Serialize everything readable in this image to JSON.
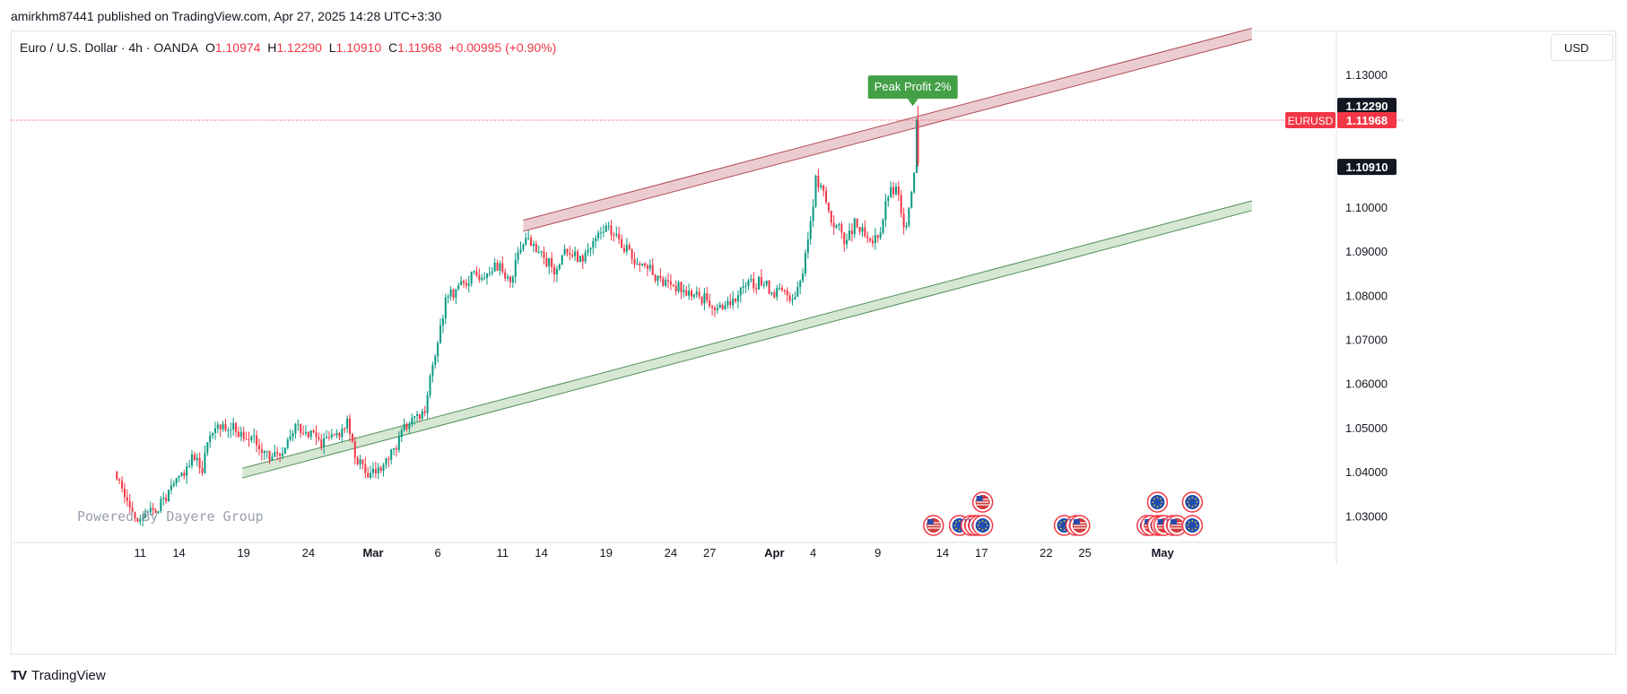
{
  "header": {
    "publisher_text": "amirkhm87441 published on TradingView.com, Apr 27, 2025 14:28 UTC+3:30"
  },
  "legend": {
    "symbol_text": "Euro / U.S. Dollar · 4h · OANDA",
    "o_label": "O",
    "o_value": "1.10974",
    "h_label": "H",
    "h_value": "1.12290",
    "l_label": "L",
    "l_value": "1.10910",
    "c_label": "C",
    "c_value": "1.11968",
    "change": "+0.00995 (+0.90%)"
  },
  "currency_button": "USD",
  "watermark": "Powered By Dayere Group",
  "footer": {
    "brand": "TradingView",
    "logo": "TV"
  },
  "colors": {
    "up": "#089981",
    "down": "#f23645",
    "text": "#131722",
    "channel_top_fill": "#e8c4c9",
    "channel_top_line": "#b04a55",
    "channel_bottom_fill": "#cfe3cd",
    "channel_bottom_line": "#4f8f55",
    "peak_label_bg": "#43a047",
    "price_line": "#f23645"
  },
  "chart_data": {
    "type": "candlestick",
    "symbol": "EURUSD",
    "timeframe": "4h",
    "ylim": [
      1.025,
      1.14
    ],
    "y_ticks": [
      "1.13000",
      "1.10000",
      "1.09000",
      "1.08000",
      "1.07000",
      "1.06000",
      "1.05000",
      "1.04000",
      "1.03000"
    ],
    "x_ticks": [
      "11",
      "14",
      "19",
      "24",
      "Mar",
      "6",
      "11",
      "14",
      "19",
      "24",
      "27",
      "Apr",
      "4",
      "9",
      "14",
      "17",
      "22",
      "25",
      "May"
    ],
    "x_tick_days": [
      -18,
      -15,
      -10,
      -5,
      0,
      5,
      10,
      13,
      18,
      23,
      26,
      31,
      34,
      39,
      44,
      47,
      52,
      55,
      61
    ],
    "price_labels": [
      {
        "text": "1.12290",
        "value": 1.1229,
        "style": "dark"
      },
      {
        "text": "1.11968",
        "value": 1.11968,
        "style": "red",
        "tag": "EURUSD"
      },
      {
        "text": "1.10910",
        "value": 1.1091,
        "style": "dark"
      }
    ],
    "current_price": 1.11968,
    "annotation": {
      "text": "Peak Profit 2%",
      "day": 41.7,
      "price": 1.1229
    },
    "channels": [
      {
        "name": "resistance",
        "from": [
          11.6,
          1.0945
        ],
        "to": [
          67.9,
          1.138
        ],
        "thickness": 0.0025
      },
      {
        "name": "support",
        "from": [
          -10.1,
          1.0386
        ],
        "to": [
          67.9,
          1.0992
        ],
        "thickness": 0.0022
      }
    ],
    "event_icons": {
      "bottom_row": [
        {
          "day": 43.3,
          "flag": "us"
        },
        {
          "day": 45.3,
          "flag": "eu"
        },
        {
          "day": 46.2,
          "flag": "us"
        },
        {
          "day": 46.5,
          "flag": "us"
        },
        {
          "day": 46.8,
          "flag": "eu"
        },
        {
          "day": 47.1,
          "flag": "eu"
        },
        {
          "day": 53.4,
          "flag": "eu"
        },
        {
          "day": 54.3,
          "flag": "us"
        },
        {
          "day": 54.6,
          "flag": "us"
        },
        {
          "day": 59.8,
          "flag": "eu"
        },
        {
          "day": 60.1,
          "flag": "us"
        },
        {
          "day": 60.6,
          "flag": "eu"
        },
        {
          "day": 60.9,
          "flag": "eu"
        },
        {
          "day": 61.1,
          "flag": "us"
        },
        {
          "day": 61.8,
          "flag": "us"
        },
        {
          "day": 62.1,
          "flag": "us"
        },
        {
          "day": 63.3,
          "flag": "eu"
        }
      ],
      "top_row": [
        {
          "day": 47.1,
          "flag": "us"
        },
        {
          "day": 60.6,
          "flag": "eu"
        },
        {
          "day": 63.3,
          "flag": "eu"
        }
      ]
    },
    "path_points": [
      [
        -20,
        1.04
      ],
      [
        -18.5,
        1.03
      ],
      [
        -17.5,
        1.03
      ],
      [
        -16,
        1.034
      ],
      [
        -14,
        1.043
      ],
      [
        -13.2,
        1.041
      ],
      [
        -12.5,
        1.05
      ],
      [
        -11.5,
        1.051
      ],
      [
        -10.5,
        1.049
      ],
      [
        -9,
        1.047
      ],
      [
        -8,
        1.043
      ],
      [
        -7,
        1.043
      ],
      [
        -6,
        1.05
      ],
      [
        -5,
        1.049
      ],
      [
        -4,
        1.047
      ],
      [
        -3,
        1.048
      ],
      [
        -2,
        1.051
      ],
      [
        -1.5,
        1.044
      ],
      [
        -0.5,
        1.039
      ],
      [
        0.5,
        1.04
      ],
      [
        1.5,
        1.044
      ],
      [
        2.5,
        1.05
      ],
      [
        3.5,
        1.052
      ],
      [
        4,
        1.054
      ],
      [
        4.5,
        1.062
      ],
      [
        5,
        1.068
      ],
      [
        5.5,
        1.078
      ],
      [
        6.5,
        1.082
      ],
      [
        7.5,
        1.084
      ],
      [
        8.5,
        1.085
      ],
      [
        9.5,
        1.087
      ],
      [
        10.5,
        1.083
      ],
      [
        11.1,
        1.088
      ],
      [
        11.7,
        1.093
      ],
      [
        12.5,
        1.09
      ],
      [
        13.2,
        1.088
      ],
      [
        14,
        1.086
      ],
      [
        15,
        1.09
      ],
      [
        16,
        1.088
      ],
      [
        17,
        1.092
      ],
      [
        18,
        1.095
      ],
      [
        19,
        1.093
      ],
      [
        20,
        1.088
      ],
      [
        21,
        1.087
      ],
      [
        22,
        1.083
      ],
      [
        23,
        1.083
      ],
      [
        24,
        1.081
      ],
      [
        25,
        1.08
      ],
      [
        26,
        1.079
      ],
      [
        26.7,
        1.076
      ],
      [
        27.5,
        1.079
      ],
      [
        29,
        1.082
      ],
      [
        30,
        1.083
      ],
      [
        31,
        1.081
      ],
      [
        32.5,
        1.08
      ],
      [
        33.3,
        1.086
      ],
      [
        33.7,
        1.095
      ],
      [
        34.2,
        1.106
      ],
      [
        34.8,
        1.103
      ],
      [
        35.4,
        1.097
      ],
      [
        36,
        1.095
      ],
      [
        36.6,
        1.092
      ],
      [
        37.2,
        1.096
      ],
      [
        37.8,
        1.094
      ],
      [
        38.4,
        1.091
      ],
      [
        39.2,
        1.095
      ],
      [
        39.8,
        1.103
      ],
      [
        40.5,
        1.104
      ],
      [
        41,
        1.094
      ],
      [
        41.5,
        1.102
      ],
      [
        41.8,
        1.109
      ],
      [
        42.1,
        1.1197
      ]
    ],
    "seed": 2
  }
}
